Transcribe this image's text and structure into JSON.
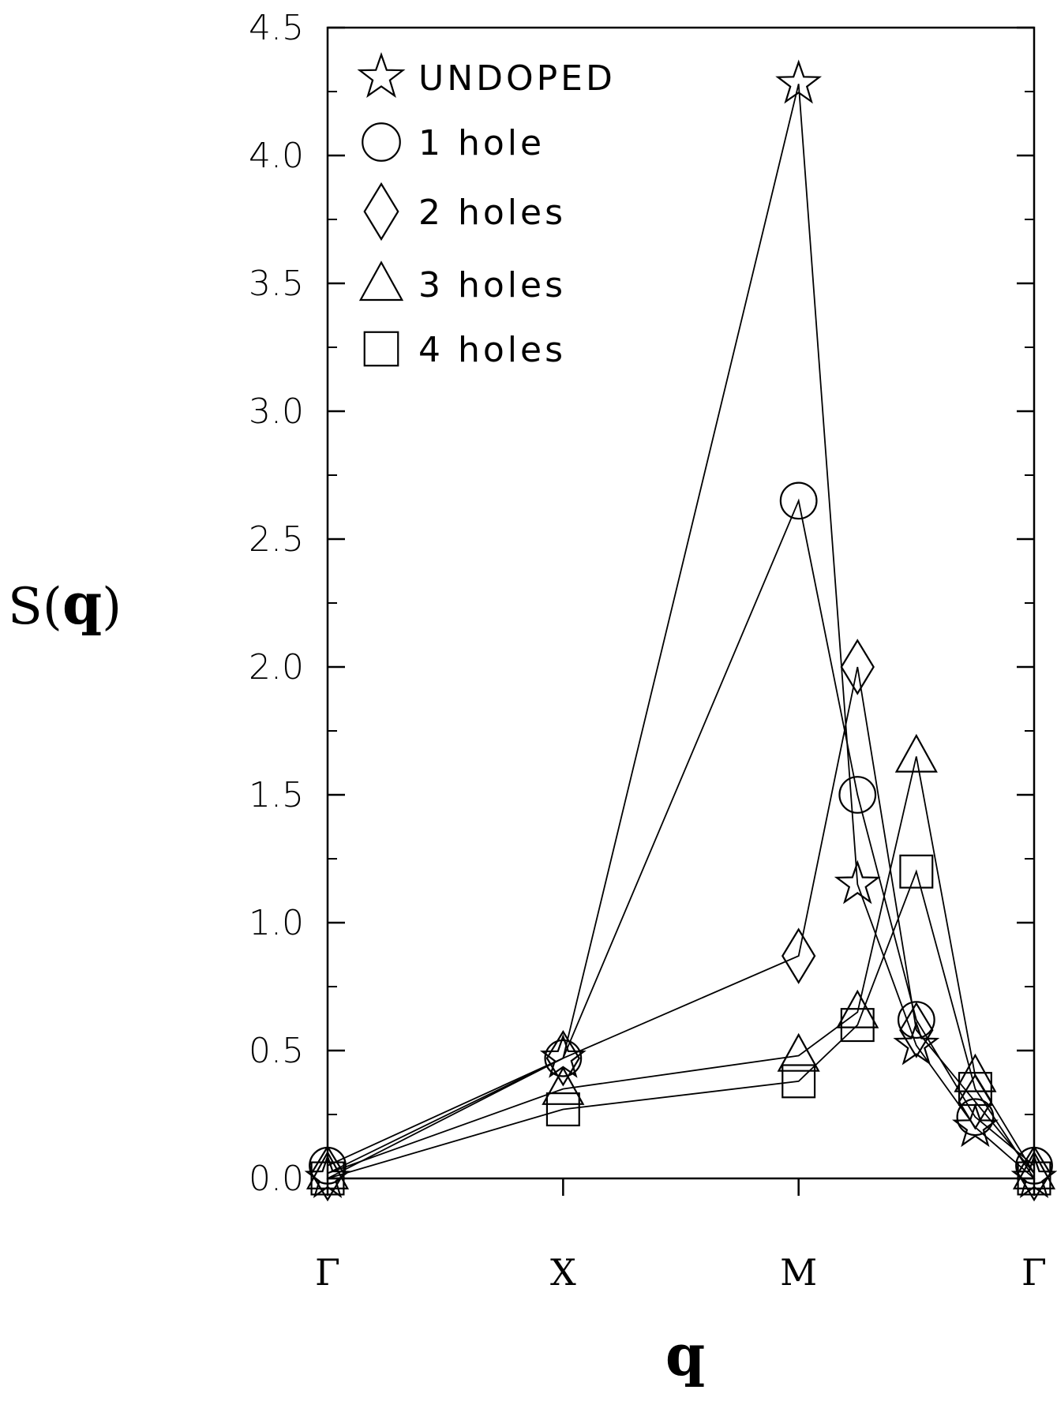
{
  "chart_data": {
    "type": "line",
    "xlabel": "q",
    "ylabel_prefix": "S(",
    "ylabel_var": "q",
    "ylabel_suffix": ")",
    "ylim": [
      0,
      4.5
    ],
    "y_ticks": [
      "0.0",
      "0.5",
      "1.0",
      "1.5",
      "2.0",
      "2.5",
      "3.0",
      "3.5",
      "4.0",
      "4.5"
    ],
    "x_ticks": [
      {
        "label": "Γ",
        "x": 0
      },
      {
        "label": "X",
        "x": 1
      },
      {
        "label": "M",
        "x": 2
      },
      {
        "label": "Γ",
        "x": 3
      }
    ],
    "xlim": [
      0,
      3
    ],
    "legend_position": "top-left",
    "series": [
      {
        "name": "UNDOPED",
        "marker": "star",
        "x": [
          0,
          1,
          2,
          2.25,
          2.5,
          2.75,
          3
        ],
        "y": [
          0.0,
          0.47,
          4.28,
          1.15,
          0.52,
          0.2,
          0.0
        ]
      },
      {
        "name": "1 hole",
        "marker": "circle",
        "x": [
          0,
          1,
          2,
          2.25,
          2.5,
          2.75,
          3
        ],
        "y": [
          0.05,
          0.47,
          2.65,
          1.5,
          0.62,
          0.24,
          0.05
        ]
      },
      {
        "name": "2 holes",
        "marker": "diamond",
        "x": [
          0,
          1,
          2,
          2.25,
          2.5,
          2.75,
          3
        ],
        "y": [
          0.02,
          0.47,
          0.87,
          2.0,
          0.58,
          0.3,
          0.02
        ]
      },
      {
        "name": "3 holes",
        "marker": "triangle",
        "x": [
          0,
          1,
          2,
          2.25,
          2.5,
          2.75,
          3
        ],
        "y": [
          0.02,
          0.35,
          0.48,
          0.65,
          1.65,
          0.4,
          0.02
        ]
      },
      {
        "name": "4 holes",
        "marker": "square",
        "x": [
          0,
          1,
          2,
          2.25,
          2.5,
          2.75,
          3
        ],
        "y": [
          0.0,
          0.27,
          0.38,
          0.6,
          1.2,
          0.35,
          0.0
        ]
      }
    ]
  }
}
